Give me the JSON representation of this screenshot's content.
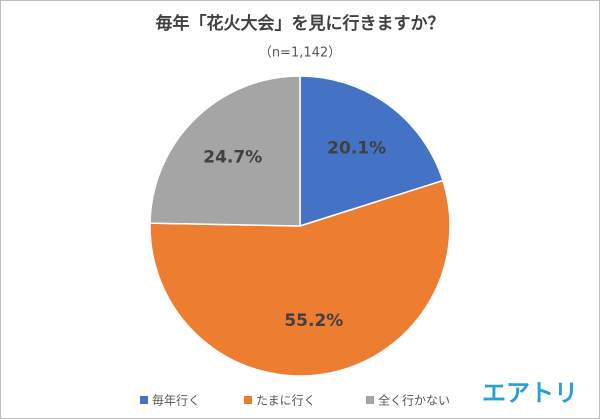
{
  "chart_data": {
    "type": "pie",
    "title": "毎年「花火大会」を見に行きますか？",
    "subtitle": "（n=1,142）",
    "categories": [
      "毎年行く",
      "たまに行く",
      "全く行かない"
    ],
    "values": [
      20.1,
      55.2,
      24.7
    ],
    "value_labels": [
      "20.1%",
      "55.2%",
      "24.7%"
    ],
    "colors": [
      "#4472c4",
      "#ed7d31",
      "#a5a5a5"
    ],
    "legend": "bottom",
    "logo": "エアトリ"
  }
}
